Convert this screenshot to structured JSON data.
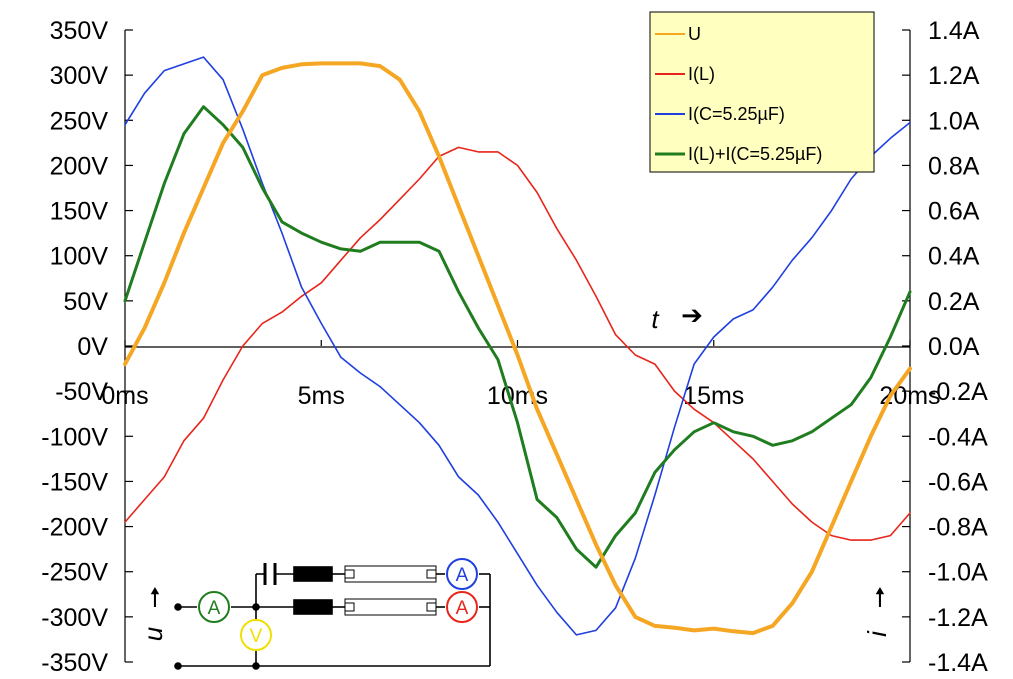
{
  "chart_data": {
    "type": "line",
    "title": "",
    "grid": false,
    "legend_position": "top-right",
    "x_axis": {
      "label": "t",
      "arrow": "➔",
      "unit": "ms",
      "range": [
        0,
        20
      ],
      "tick_labels": [
        "0ms",
        "5ms",
        "10ms",
        "15ms",
        "20ms"
      ]
    },
    "y_left": {
      "label": "u",
      "arrow": "🠕",
      "range": [
        -350,
        350
      ],
      "tick_labels": [
        "350V",
        "300V",
        "250V",
        "200V",
        "150V",
        "100V",
        "50V",
        "0V",
        "-50V",
        "-100V",
        "-150V",
        "-200V",
        "-250V",
        "-300V",
        "-350V"
      ]
    },
    "y_right": {
      "label": "i",
      "arrow": "🠕",
      "range": [
        -1.4,
        1.4
      ],
      "tick_labels": [
        "1.4A",
        "1.2A",
        "1.0A",
        "0.8A",
        "0.6A",
        "0.4A",
        "0.2A",
        "0.0A",
        "-0.2A",
        "-0.4A",
        "-0.6A",
        "-0.8A",
        "-1.0A",
        "-1.2A",
        "-1.4A"
      ]
    },
    "series": [
      {
        "name": "U",
        "axis": "left",
        "color": "#f5a623",
        "x": [
          0,
          0.5,
          1,
          1.5,
          2,
          2.5,
          3,
          3.5,
          4,
          4.5,
          5,
          5.5,
          6,
          6.5,
          7,
          7.5,
          8,
          8.5,
          9,
          9.5,
          10,
          10.5,
          11,
          11.5,
          12,
          12.5,
          13,
          13.5,
          14,
          14.5,
          15,
          15.5,
          16,
          16.5,
          17,
          17.5,
          18,
          18.5,
          19,
          19.5,
          20
        ],
        "y": [
          -20,
          20,
          70,
          125,
          175,
          225,
          260,
          300,
          308,
          312,
          313,
          313,
          313,
          310,
          295,
          260,
          210,
          155,
          100,
          45,
          -10,
          -70,
          -120,
          -170,
          -220,
          -265,
          -300,
          -310,
          -312,
          -315,
          -313,
          -316,
          -318,
          -310,
          -285,
          -250,
          -200,
          -150,
          -100,
          -55,
          -25
        ]
      },
      {
        "name": "I(L)",
        "axis": "right",
        "color": "#e8251a",
        "x": [
          0,
          0.5,
          1,
          1.5,
          2,
          2.5,
          3,
          3.5,
          4,
          4.5,
          5,
          5.5,
          6,
          6.5,
          7,
          7.5,
          8,
          8.5,
          9,
          9.5,
          10,
          10.5,
          11,
          11.5,
          12,
          12.5,
          13,
          13.5,
          14,
          14.5,
          15,
          15.5,
          16,
          16.5,
          17,
          17.5,
          18,
          18.5,
          19,
          19.5,
          20
        ],
        "y": [
          -0.78,
          -0.68,
          -0.58,
          -0.42,
          -0.32,
          -0.15,
          0.0,
          0.1,
          0.15,
          0.22,
          0.28,
          0.38,
          0.48,
          0.56,
          0.65,
          0.74,
          0.84,
          0.88,
          0.86,
          0.86,
          0.8,
          0.68,
          0.52,
          0.38,
          0.22,
          0.05,
          -0.04,
          -0.08,
          -0.2,
          -0.28,
          -0.34,
          -0.42,
          -0.5,
          -0.6,
          -0.7,
          -0.78,
          -0.84,
          -0.86,
          -0.86,
          -0.84,
          -0.74
        ]
      },
      {
        "name": "I(C=5.25µF)",
        "axis": "right",
        "color": "#1f3fe0",
        "x": [
          0,
          0.5,
          1,
          1.5,
          2,
          2.5,
          3,
          3.5,
          4,
          4.5,
          5,
          5.5,
          6,
          6.5,
          7,
          7.5,
          8,
          8.5,
          9,
          9.5,
          10,
          10.5,
          11,
          11.5,
          12,
          12.5,
          13,
          13.5,
          14,
          14.5,
          15,
          15.5,
          16,
          16.5,
          17,
          17.5,
          18,
          18.5,
          19,
          19.5,
          20
        ],
        "y": [
          0.98,
          1.12,
          1.22,
          1.25,
          1.28,
          1.18,
          0.96,
          0.72,
          0.5,
          0.26,
          0.1,
          -0.05,
          -0.12,
          -0.18,
          -0.26,
          -0.34,
          -0.44,
          -0.58,
          -0.66,
          -0.78,
          -0.92,
          -1.06,
          -1.18,
          -1.28,
          -1.26,
          -1.16,
          -0.94,
          -0.66,
          -0.36,
          -0.08,
          0.04,
          0.12,
          0.16,
          0.26,
          0.38,
          0.48,
          0.6,
          0.74,
          0.84,
          0.92,
          0.99
        ]
      },
      {
        "name": "I(L)+I(C=5.25µF)",
        "axis": "right",
        "color": "#1f7d1f",
        "x": [
          0,
          0.5,
          1,
          1.5,
          2,
          2.5,
          3,
          3.5,
          4,
          4.5,
          5,
          5.5,
          6,
          6.5,
          7,
          7.5,
          8,
          8.5,
          9,
          9.5,
          10,
          10.5,
          11,
          11.5,
          12,
          12.5,
          13,
          13.5,
          14,
          14.5,
          15,
          15.5,
          16,
          16.5,
          17,
          17.5,
          18,
          18.5,
          19,
          19.5,
          20
        ],
        "y": [
          0.2,
          0.46,
          0.72,
          0.94,
          1.06,
          0.98,
          0.88,
          0.7,
          0.55,
          0.5,
          0.46,
          0.43,
          0.42,
          0.46,
          0.46,
          0.46,
          0.42,
          0.24,
          0.08,
          -0.06,
          -0.34,
          -0.68,
          -0.76,
          -0.9,
          -0.98,
          -0.84,
          -0.74,
          -0.56,
          -0.46,
          -0.38,
          -0.34,
          -0.38,
          -0.4,
          -0.44,
          -0.42,
          -0.38,
          -0.32,
          -0.26,
          -0.14,
          0.04,
          0.24
        ]
      }
    ]
  },
  "circuit": {
    "capacitor_symbol": "||",
    "meters": [
      {
        "letter": "A",
        "color": "#1f7d1f",
        "role": "ammeter"
      },
      {
        "letter": "V",
        "color": "#f0e000",
        "role": "voltmeter"
      },
      {
        "letter": "A",
        "color": "#1f3fe0",
        "role": "ammeter"
      },
      {
        "letter": "A",
        "color": "#e8251a",
        "role": "ammeter"
      }
    ]
  }
}
